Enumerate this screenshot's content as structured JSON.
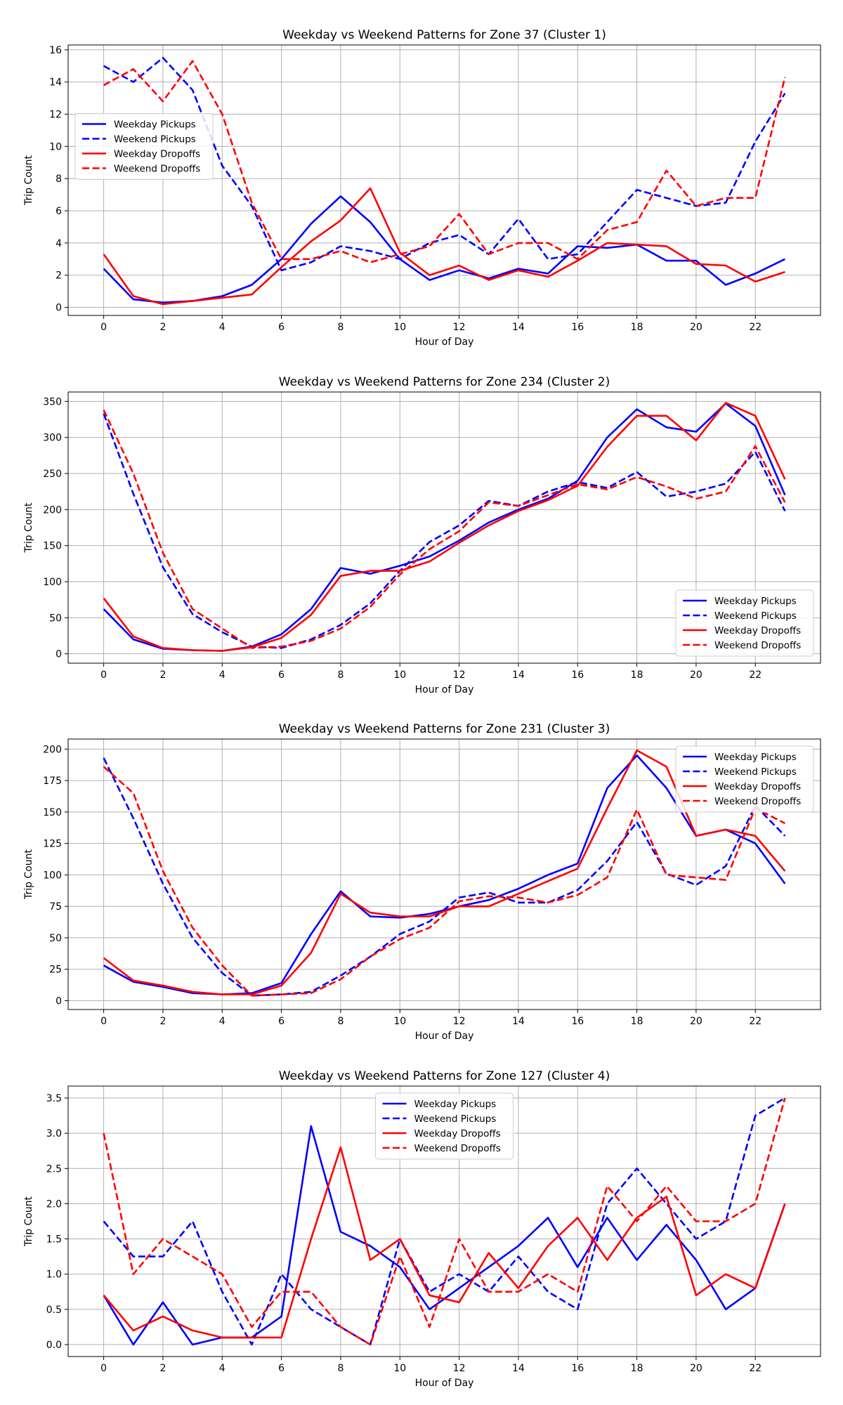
{
  "chart_data": [
    {
      "type": "line",
      "title": "Weekday vs Weekend Patterns for Zone 37 (Cluster 1)",
      "xlabel": "Hour of Day",
      "ylabel": "Trip Count",
      "xlim": [
        -1.2,
        24.2
      ],
      "ylim": [
        -0.5,
        16.3
      ],
      "xticks": [
        0,
        2,
        4,
        6,
        8,
        10,
        12,
        14,
        16,
        18,
        20,
        22
      ],
      "yticks": [
        0,
        2,
        4,
        6,
        8,
        10,
        12,
        14,
        16
      ],
      "ytick_labels": [
        "0",
        "2",
        "4",
        "6",
        "8",
        "10",
        "12",
        "14",
        "16"
      ],
      "grid": true,
      "legend_loc": "center-left",
      "x": [
        0,
        1,
        2,
        3,
        4,
        5,
        6,
        7,
        8,
        9,
        10,
        11,
        12,
        13,
        14,
        15,
        16,
        17,
        18,
        19,
        20,
        21,
        22,
        23
      ],
      "series": [
        {
          "name": "Weekday Pickups",
          "color": "#0000ff",
          "dash": false,
          "values": [
            2.4,
            0.5,
            0.3,
            0.4,
            0.7,
            1.4,
            3.0,
            5.2,
            6.9,
            5.3,
            3.0,
            1.7,
            2.3,
            1.8,
            2.4,
            2.1,
            3.8,
            3.7,
            3.9,
            2.9,
            2.9,
            1.4,
            2.1,
            3.0
          ]
        },
        {
          "name": "Weekend Pickups",
          "color": "#0000ff",
          "dash": true,
          "values": [
            15.0,
            14.0,
            15.5,
            13.5,
            8.8,
            6.3,
            2.3,
            2.8,
            3.8,
            3.5,
            3.0,
            4.0,
            4.5,
            3.3,
            5.5,
            3.0,
            3.3,
            5.3,
            7.3,
            6.8,
            6.3,
            6.5,
            10.3,
            13.3
          ]
        },
        {
          "name": "Weekday Dropoffs",
          "color": "#ff0000",
          "dash": false,
          "values": [
            3.3,
            0.7,
            0.2,
            0.4,
            0.6,
            0.8,
            2.5,
            4.1,
            5.4,
            7.4,
            3.4,
            2.0,
            2.6,
            1.7,
            2.3,
            1.9,
            2.9,
            4.0,
            3.9,
            3.8,
            2.7,
            2.6,
            1.6,
            2.2
          ]
        },
        {
          "name": "Weekend Dropoffs",
          "color": "#ff0000",
          "dash": true,
          "values": [
            13.8,
            14.8,
            12.8,
            15.3,
            12.0,
            6.5,
            3.0,
            3.0,
            3.5,
            2.8,
            3.3,
            3.8,
            5.8,
            3.3,
            4.0,
            4.0,
            3.0,
            4.8,
            5.3,
            8.5,
            6.3,
            6.8,
            6.8,
            14.3
          ]
        }
      ]
    },
    {
      "type": "line",
      "title": "Weekday vs Weekend Patterns for Zone 234 (Cluster 2)",
      "xlabel": "Hour of Day",
      "ylabel": "Trip Count",
      "xlim": [
        -1.2,
        24.2
      ],
      "ylim": [
        -13,
        363
      ],
      "xticks": [
        0,
        2,
        4,
        6,
        8,
        10,
        12,
        14,
        16,
        18,
        20,
        22
      ],
      "yticks": [
        0,
        50,
        100,
        150,
        200,
        250,
        300,
        350
      ],
      "ytick_labels": [
        "0",
        "50",
        "100",
        "150",
        "200",
        "250",
        "300",
        "350"
      ],
      "grid": true,
      "legend_loc": "lower-right",
      "x": [
        0,
        1,
        2,
        3,
        4,
        5,
        6,
        7,
        8,
        9,
        10,
        11,
        12,
        13,
        14,
        15,
        16,
        17,
        18,
        19,
        20,
        21,
        22,
        23
      ],
      "series": [
        {
          "name": "Weekday Pickups",
          "color": "#0000ff",
          "dash": false,
          "values": [
            62,
            20,
            7,
            5,
            4,
            10,
            27,
            62,
            119,
            111,
            122,
            135,
            157,
            182,
            200,
            215,
            240,
            300,
            339,
            314,
            308,
            347,
            316,
            220
          ]
        },
        {
          "name": "Weekend Pickups",
          "color": "#0000ff",
          "dash": true,
          "values": [
            333,
            222,
            120,
            55,
            30,
            10,
            8,
            20,
            40,
            70,
            115,
            155,
            178,
            212,
            205,
            225,
            238,
            230,
            252,
            218,
            225,
            236,
            280,
            198
          ]
        },
        {
          "name": "Weekday Dropoffs",
          "color": "#ff0000",
          "dash": false,
          "values": [
            77,
            24,
            8,
            5,
            4,
            9,
            22,
            54,
            108,
            115,
            115,
            128,
            154,
            178,
            198,
            213,
            233,
            287,
            330,
            330,
            296,
            348,
            330,
            242
          ]
        },
        {
          "name": "Weekend Dropoffs",
          "color": "#ff0000",
          "dash": true,
          "values": [
            338,
            250,
            140,
            62,
            35,
            8,
            10,
            18,
            35,
            65,
            110,
            145,
            170,
            210,
            205,
            220,
            235,
            228,
            245,
            232,
            215,
            225,
            288,
            210
          ]
        }
      ]
    },
    {
      "type": "line",
      "title": "Weekday vs Weekend Patterns for Zone 231 (Cluster 3)",
      "xlabel": "Hour of Day",
      "ylabel": "Trip Count",
      "xlim": [
        -1.2,
        24.2
      ],
      "ylim": [
        -7,
        208
      ],
      "xticks": [
        0,
        2,
        4,
        6,
        8,
        10,
        12,
        14,
        16,
        18,
        20,
        22
      ],
      "yticks": [
        0,
        25,
        50,
        75,
        100,
        125,
        150,
        175,
        200
      ],
      "ytick_labels": [
        "0",
        "25",
        "50",
        "75",
        "100",
        "125",
        "150",
        "175",
        "200"
      ],
      "grid": true,
      "legend_loc": "top-right",
      "x": [
        0,
        1,
        2,
        3,
        4,
        5,
        6,
        7,
        8,
        9,
        10,
        11,
        12,
        13,
        14,
        15,
        16,
        17,
        18,
        19,
        20,
        21,
        22,
        23
      ],
      "series": [
        {
          "name": "Weekday Pickups",
          "color": "#0000ff",
          "dash": false,
          "values": [
            28,
            15,
            11,
            6,
            5,
            6,
            14,
            53,
            87,
            67,
            66,
            69,
            75,
            80,
            89,
            100,
            109,
            169,
            195,
            169,
            131,
            136,
            125,
            93
          ]
        },
        {
          "name": "Weekend Pickups",
          "color": "#0000ff",
          "dash": true,
          "values": [
            193,
            145,
            93,
            50,
            22,
            4,
            5,
            7,
            20,
            35,
            53,
            63,
            82,
            86,
            78,
            78,
            88,
            111,
            142,
            101,
            92,
            107,
            155,
            131
          ]
        },
        {
          "name": "Weekday Dropoffs",
          "color": "#ff0000",
          "dash": false,
          "values": [
            34,
            16,
            12,
            7,
            5,
            5,
            12,
            38,
            85,
            70,
            67,
            67,
            75,
            75,
            85,
            95,
            105,
            153,
            199,
            186,
            131,
            136,
            131,
            103
          ]
        },
        {
          "name": "Weekend Dropoffs",
          "color": "#ff0000",
          "dash": true,
          "values": [
            186,
            165,
            103,
            58,
            28,
            4,
            5,
            6,
            17,
            35,
            49,
            58,
            79,
            83,
            82,
            78,
            84,
            98,
            152,
            100,
            98,
            96,
            153,
            141
          ]
        }
      ]
    },
    {
      "type": "line",
      "title": "Weekday vs Weekend Patterns for Zone 127 (Cluster 4)",
      "xlabel": "Hour of Day",
      "ylabel": "Trip Count",
      "xlim": [
        -1.2,
        24.2
      ],
      "ylim": [
        -0.17,
        3.67
      ],
      "xticks": [
        0,
        2,
        4,
        6,
        8,
        10,
        12,
        14,
        16,
        18,
        20,
        22
      ],
      "yticks": [
        0,
        0.5,
        1.0,
        1.5,
        2.0,
        2.5,
        3.0,
        3.5
      ],
      "ytick_labels": [
        "0.0",
        "0.5",
        "1.0",
        "1.5",
        "2.0",
        "2.5",
        "3.0",
        "3.5"
      ],
      "grid": true,
      "legend_loc": "top-center",
      "x": [
        0,
        1,
        2,
        3,
        4,
        5,
        6,
        7,
        8,
        9,
        10,
        11,
        12,
        13,
        14,
        15,
        16,
        17,
        18,
        19,
        20,
        21,
        22,
        23
      ],
      "series": [
        {
          "name": "Weekday Pickups",
          "color": "#0000ff",
          "dash": false,
          "values": [
            0.7,
            0.0,
            0.6,
            0.0,
            0.1,
            0.1,
            0.4,
            3.1,
            1.6,
            1.4,
            1.1,
            0.5,
            0.8,
            1.1,
            1.4,
            1.8,
            1.1,
            1.8,
            1.2,
            1.7,
            1.2,
            0.5,
            0.8,
            2.0
          ]
        },
        {
          "name": "Weekend Pickups",
          "color": "#0000ff",
          "dash": true,
          "values": [
            1.75,
            1.25,
            1.25,
            1.75,
            0.75,
            0.0,
            1.0,
            0.5,
            0.25,
            0.0,
            1.5,
            0.75,
            1.0,
            0.75,
            1.25,
            0.75,
            0.5,
            2.0,
            2.5,
            2.0,
            1.5,
            1.75,
            3.25,
            3.5
          ]
        },
        {
          "name": "Weekday Dropoffs",
          "color": "#ff0000",
          "dash": false,
          "values": [
            0.7,
            0.2,
            0.4,
            0.2,
            0.1,
            0.1,
            0.1,
            1.5,
            2.8,
            1.2,
            1.5,
            0.7,
            0.6,
            1.3,
            0.8,
            1.4,
            1.8,
            1.2,
            1.8,
            2.1,
            0.7,
            1.0,
            0.8,
            2.0
          ]
        },
        {
          "name": "Weekend Dropoffs",
          "color": "#ff0000",
          "dash": true,
          "values": [
            3.0,
            1.0,
            1.5,
            1.25,
            1.0,
            0.25,
            0.75,
            0.75,
            0.25,
            0.0,
            1.25,
            0.25,
            1.5,
            0.75,
            0.75,
            1.0,
            0.75,
            2.25,
            1.75,
            2.25,
            1.75,
            1.75,
            2.0,
            3.5
          ]
        }
      ]
    }
  ]
}
